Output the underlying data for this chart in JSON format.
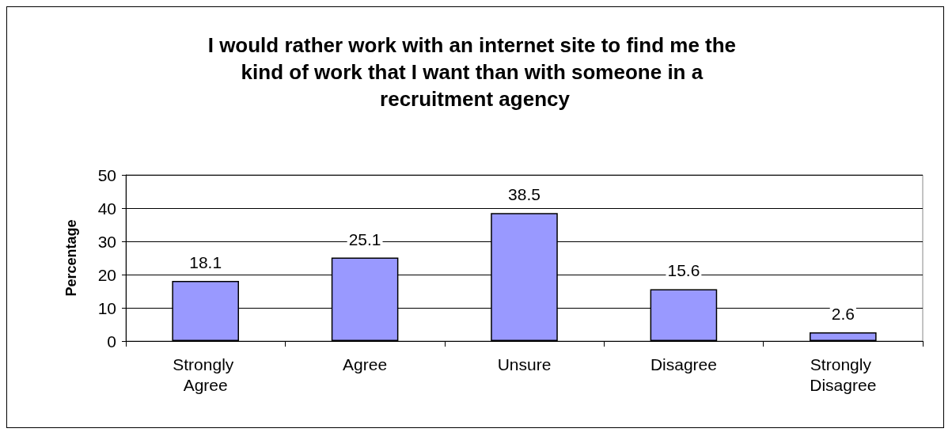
{
  "chart_data": {
    "type": "bar",
    "title": "I would rather work with an internet site to find me the kind of work that I want than with someone in a recruitment agency",
    "ylabel": "Percentage",
    "categories": [
      "Strongly Agree",
      "Agree",
      "Unsure",
      "Disagree",
      "Strongly Disagree"
    ],
    "values": [
      18.1,
      25.1,
      38.5,
      15.6,
      2.6
    ],
    "color": "#9999ff",
    "ylim": [
      0,
      50
    ],
    "yticks": [
      0,
      10,
      20,
      30,
      40,
      50
    ],
    "grid": "y",
    "data_labels": true
  }
}
